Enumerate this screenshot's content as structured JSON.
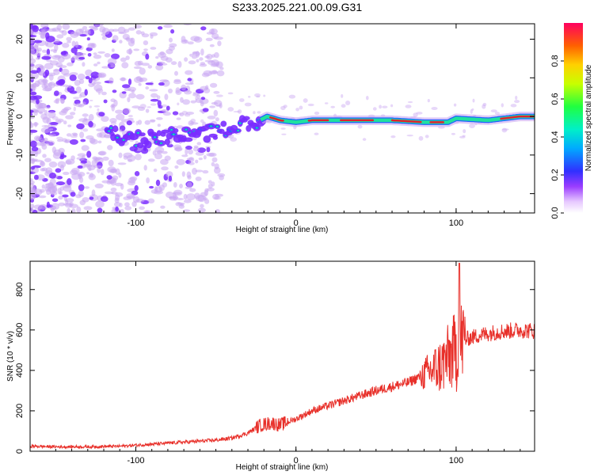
{
  "title": "S233.2025.221.00.09.G31",
  "colors": {
    "snr_line": "#e8302a",
    "ridge_core": "#e02030",
    "ridge_mid": "#20e0a0",
    "ridge_outer": "#2060ff",
    "noise": "#7a2cff",
    "noise_light": "#c9a6f2"
  },
  "chart_data": [
    {
      "type": "heatmap",
      "name": "spectrogram",
      "xlabel": "Height of straight line (km)",
      "ylabel": "Frequency (Hz)",
      "xlim": [
        -166,
        149
      ],
      "ylim": [
        -25,
        24
      ],
      "xticks": [
        -100,
        0,
        100
      ],
      "yticks": [
        -20,
        -10,
        0,
        10,
        20
      ],
      "ridge": {
        "x": [
          -115,
          -100,
          -80,
          -60,
          -40,
          -25,
          -18,
          -10,
          0,
          10,
          30,
          50,
          60,
          80,
          90,
          95,
          100,
          120,
          140,
          149
        ],
        "frequency": [
          -4.5,
          -6,
          -5,
          -4.5,
          -3,
          -1.5,
          0,
          -1,
          -1.5,
          -1,
          -1,
          -1,
          -1,
          -1.5,
          -1.5,
          -1.5,
          -0.5,
          -1,
          0,
          0
        ]
      },
      "colorbar": {
        "label": "Normalized spectral amplitude",
        "range": [
          0,
          1
        ],
        "ticks": [
          0.0,
          0.2,
          0.4,
          0.6,
          0.8
        ]
      }
    },
    {
      "type": "line",
      "name": "snr",
      "xlabel": "Height of straight line (km)",
      "ylabel": "SNR (10 * v/v)",
      "xlim": [
        -166,
        149
      ],
      "ylim": [
        0,
        940
      ],
      "xticks": [
        -100,
        0,
        100
      ],
      "yticks": [
        0,
        200,
        400,
        600,
        800
      ],
      "series": [
        {
          "name": "SNR",
          "x": [
            -166,
            -150,
            -130,
            -110,
            -90,
            -70,
            -50,
            -40,
            -30,
            -22,
            -15,
            -10,
            0,
            10,
            30,
            50,
            70,
            80,
            90,
            95,
            100,
            103,
            108,
            115,
            125,
            140,
            149
          ],
          "y": [
            25,
            22,
            22,
            25,
            35,
            45,
            55,
            65,
            90,
            130,
            140,
            130,
            160,
            200,
            250,
            300,
            340,
            380,
            420,
            460,
            500,
            540,
            560,
            575,
            590,
            600,
            595
          ]
        }
      ]
    }
  ]
}
